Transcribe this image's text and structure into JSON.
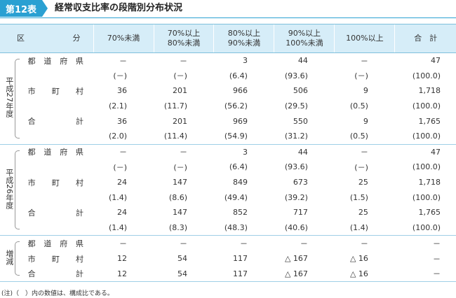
{
  "header": {
    "badge": "第12表",
    "title": "経常収支比率の段階別分布状況"
  },
  "columns": [
    "70%未満",
    "70%以上\n80%未満",
    "80%以上\n90%未満",
    "90%以上\n100%未満",
    "100%以上",
    "合　計"
  ],
  "corner": {
    "left": "区",
    "right": "分"
  },
  "groups": [
    {
      "label": "平成27年度",
      "rows": [
        {
          "label": "都道府県",
          "values": [
            "－",
            "－",
            "3",
            "44",
            "－",
            "47"
          ]
        },
        {
          "label": "",
          "values": [
            "(－)",
            "(－)",
            "(6.4)",
            "(93.6)",
            "(－)",
            "(100.0)"
          ]
        },
        {
          "label": "市町村",
          "values": [
            "36",
            "201",
            "966",
            "506",
            "9",
            "1,718"
          ]
        },
        {
          "label": "",
          "values": [
            "(2.1)",
            "(11.7)",
            "(56.2)",
            "(29.5)",
            "(0.5)",
            "(100.0)"
          ]
        },
        {
          "label": "合計",
          "values": [
            "36",
            "201",
            "969",
            "550",
            "9",
            "1,765"
          ]
        },
        {
          "label": "",
          "values": [
            "(2.0)",
            "(11.4)",
            "(54.9)",
            "(31.2)",
            "(0.5)",
            "(100.0)"
          ]
        }
      ]
    },
    {
      "label": "平成26年度",
      "rows": [
        {
          "label": "都道府県",
          "values": [
            "－",
            "－",
            "3",
            "44",
            "－",
            "47"
          ]
        },
        {
          "label": "",
          "values": [
            "(－)",
            "(－)",
            "(6.4)",
            "(93.6)",
            "(－)",
            "(100.0)"
          ]
        },
        {
          "label": "市町村",
          "values": [
            "24",
            "147",
            "849",
            "673",
            "25",
            "1,718"
          ]
        },
        {
          "label": "",
          "values": [
            "(1.4)",
            "(8.6)",
            "(49.4)",
            "(39.2)",
            "(1.5)",
            "(100.0)"
          ]
        },
        {
          "label": "合計",
          "values": [
            "24",
            "147",
            "852",
            "717",
            "25",
            "1,765"
          ]
        },
        {
          "label": "",
          "values": [
            "(1.4)",
            "(8.3)",
            "(48.3)",
            "(40.6)",
            "(1.4)",
            "(100.0)"
          ]
        }
      ]
    },
    {
      "label": "増減",
      "rows": [
        {
          "label": "都道府県",
          "values": [
            "－",
            "－",
            "－",
            "－",
            "－",
            "－"
          ]
        },
        {
          "label": "市町村",
          "values": [
            "12",
            "54",
            "117",
            "△ 167",
            "△ 16",
            "－"
          ]
        },
        {
          "label": "合計",
          "values": [
            "12",
            "54",
            "117",
            "△ 167",
            "△ 16",
            "－"
          ]
        }
      ]
    }
  ],
  "note": "(注)（　）内の数値は、構成比である。"
}
